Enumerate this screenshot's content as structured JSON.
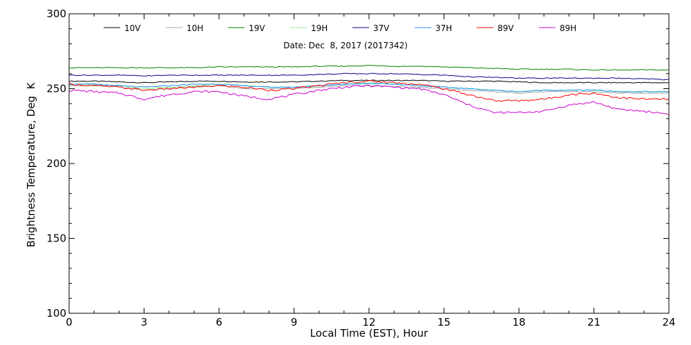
{
  "chart_data": {
    "type": "line",
    "title": "",
    "subtitle": "Date: Dec  8, 2017 (2017342)",
    "xlabel": "Local Time (EST), Hour",
    "ylabel": "Brightness Temperature, Deg  K",
    "xlim": [
      0,
      24
    ],
    "ylim": [
      100,
      300
    ],
    "xticks": [
      0,
      3,
      6,
      9,
      12,
      15,
      18,
      21,
      24
    ],
    "yticks": [
      100,
      150,
      200,
      250,
      300
    ],
    "grid": false,
    "legend_position": "top",
    "x": [
      0,
      1,
      2,
      3,
      4,
      5,
      6,
      7,
      8,
      9,
      10,
      11,
      12,
      13,
      14,
      15,
      16,
      17,
      18,
      19,
      20,
      21,
      22,
      23,
      24
    ],
    "series": [
      {
        "name": "10V",
        "color": "#000000",
        "values": [
          255,
          255,
          254.5,
          254,
          254.5,
          255,
          255,
          254.5,
          254.5,
          254.5,
          255,
          255.5,
          255.5,
          255.5,
          255.5,
          255,
          255,
          255,
          254.5,
          254,
          254,
          254,
          254,
          254,
          254
        ]
      },
      {
        "name": "10H",
        "color": "#a0a0a0",
        "values": [
          252,
          252,
          251,
          249,
          250,
          251,
          252,
          250,
          250,
          250,
          251,
          252,
          252,
          251.5,
          251,
          250,
          249,
          248,
          247,
          248,
          248,
          248,
          247,
          247,
          247
        ]
      },
      {
        "name": "19V",
        "color": "#008000",
        "values": [
          264,
          264,
          264,
          264,
          264,
          264,
          264.5,
          264.5,
          264.5,
          264.5,
          265,
          265,
          265.5,
          265,
          265,
          264.5,
          264,
          263.5,
          263,
          263,
          263,
          262.5,
          262.5,
          262.5,
          262.5
        ]
      },
      {
        "name": "19H",
        "color": "#90ee90",
        "values": [
          253,
          253,
          252,
          250,
          251,
          252,
          253,
          252,
          251,
          251,
          252,
          253,
          254,
          253,
          252,
          251,
          250,
          249,
          248,
          249,
          249,
          249,
          248,
          248,
          248
        ]
      },
      {
        "name": "37V",
        "color": "#00008b",
        "values": [
          259,
          259,
          259,
          258.5,
          259,
          259,
          259,
          259,
          259,
          259,
          259.5,
          260,
          260,
          260,
          259.5,
          259,
          258,
          257.5,
          257,
          257,
          257,
          257,
          257,
          256.5,
          256
        ]
      },
      {
        "name": "37H",
        "color": "#1e90ff",
        "values": [
          253,
          253,
          252,
          251,
          252,
          253,
          253,
          252,
          251,
          251,
          252,
          253,
          253.5,
          253,
          252,
          251,
          250,
          249,
          248,
          249,
          249,
          249,
          248,
          248,
          248
        ]
      },
      {
        "name": "89V",
        "color": "#ff0000",
        "values": [
          253,
          252,
          251,
          249,
          250,
          251,
          252,
          251,
          249,
          250,
          252,
          254,
          255,
          254,
          253,
          250,
          246,
          242,
          242,
          243,
          246,
          247,
          244,
          243,
          243
        ]
      },
      {
        "name": "89H",
        "color": "#cc00cc",
        "values": [
          249,
          248,
          247,
          243,
          246,
          248,
          248,
          245,
          243,
          246,
          249,
          251,
          252,
          251,
          250,
          246,
          239,
          234,
          234,
          235,
          239,
          241,
          236,
          235,
          233
        ]
      }
    ]
  }
}
